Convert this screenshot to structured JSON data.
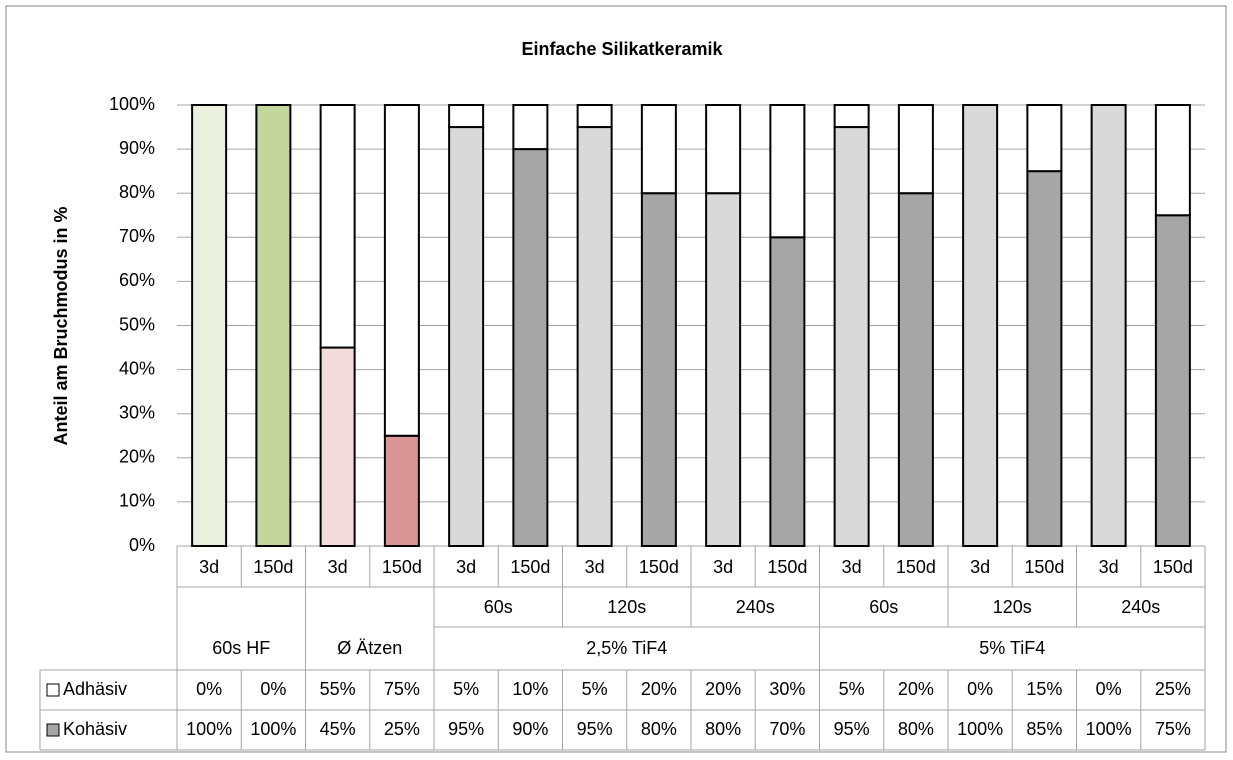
{
  "chart_data": {
    "type": "stacked_bar",
    "title": "Einfache Silikatkeramik",
    "y_label": "Anteil am Bruchmodus in %",
    "categories": [
      "3d",
      "150d",
      "3d",
      "150d",
      "3d",
      "150d",
      "3d",
      "150d",
      "3d",
      "150d",
      "3d",
      "150d",
      "3d",
      "150d",
      "3d",
      "150d"
    ],
    "subgroups": [
      {
        "label": null,
        "span": 2
      },
      {
        "label": null,
        "span": 2
      },
      {
        "label": "60s",
        "span": 2
      },
      {
        "label": "120s",
        "span": 2
      },
      {
        "label": "240s",
        "span": 2
      },
      {
        "label": "60s",
        "span": 2
      },
      {
        "label": "120s",
        "span": 2
      },
      {
        "label": "240s",
        "span": 2
      }
    ],
    "groups": [
      {
        "label": "60s HF",
        "span": 2
      },
      {
        "label": "Ø Ätzen",
        "span": 2
      },
      {
        "label": "2,5% TiF4",
        "span": 6
      },
      {
        "label": "5% TiF4",
        "span": 6
      }
    ],
    "series": [
      {
        "name": "Adhäsiv",
        "color": "#ffffff",
        "values": [
          0,
          0,
          55,
          75,
          5,
          10,
          5,
          20,
          20,
          30,
          5,
          20,
          0,
          15,
          0,
          25
        ],
        "value_labels": [
          "0%",
          "0%",
          "55%",
          "75%",
          "5%",
          "10%",
          "5%",
          "20%",
          "20%",
          "30%",
          "5%",
          "20%",
          "0%",
          "15%",
          "0%",
          "25%"
        ]
      },
      {
        "name": "Kohäsiv",
        "color": "#a6a6a6",
        "colors": [
          "#ebf1de",
          "#c3d69b",
          "#f2dcdb",
          "#d99694",
          "#d9d9d9",
          "#a6a6a6",
          "#d9d9d9",
          "#a6a6a6",
          "#d9d9d9",
          "#a6a6a6",
          "#d9d9d9",
          "#a6a6a6",
          "#d9d9d9",
          "#a6a6a6",
          "#d9d9d9",
          "#a6a6a6"
        ],
        "values": [
          100,
          100,
          45,
          25,
          95,
          90,
          95,
          80,
          80,
          70,
          95,
          80,
          100,
          85,
          100,
          75
        ],
        "value_labels": [
          "100%",
          "100%",
          "45%",
          "25%",
          "95%",
          "90%",
          "95%",
          "80%",
          "80%",
          "70%",
          "95%",
          "80%",
          "100%",
          "85%",
          "100%",
          "75%"
        ]
      }
    ],
    "ylim": [
      0,
      100
    ],
    "yticks": [
      {
        "value": 0,
        "label": "0%"
      },
      {
        "value": 10,
        "label": "10%"
      },
      {
        "value": 20,
        "label": "20%"
      },
      {
        "value": 30,
        "label": "30%"
      },
      {
        "value": 40,
        "label": "40%"
      },
      {
        "value": 50,
        "label": "50%"
      },
      {
        "value": 60,
        "label": "60%"
      },
      {
        "value": 70,
        "label": "70%"
      },
      {
        "value": 80,
        "label": "80%"
      },
      {
        "value": 90,
        "label": "90%"
      },
      {
        "value": 100,
        "label": "100%"
      }
    ],
    "grid": true
  }
}
